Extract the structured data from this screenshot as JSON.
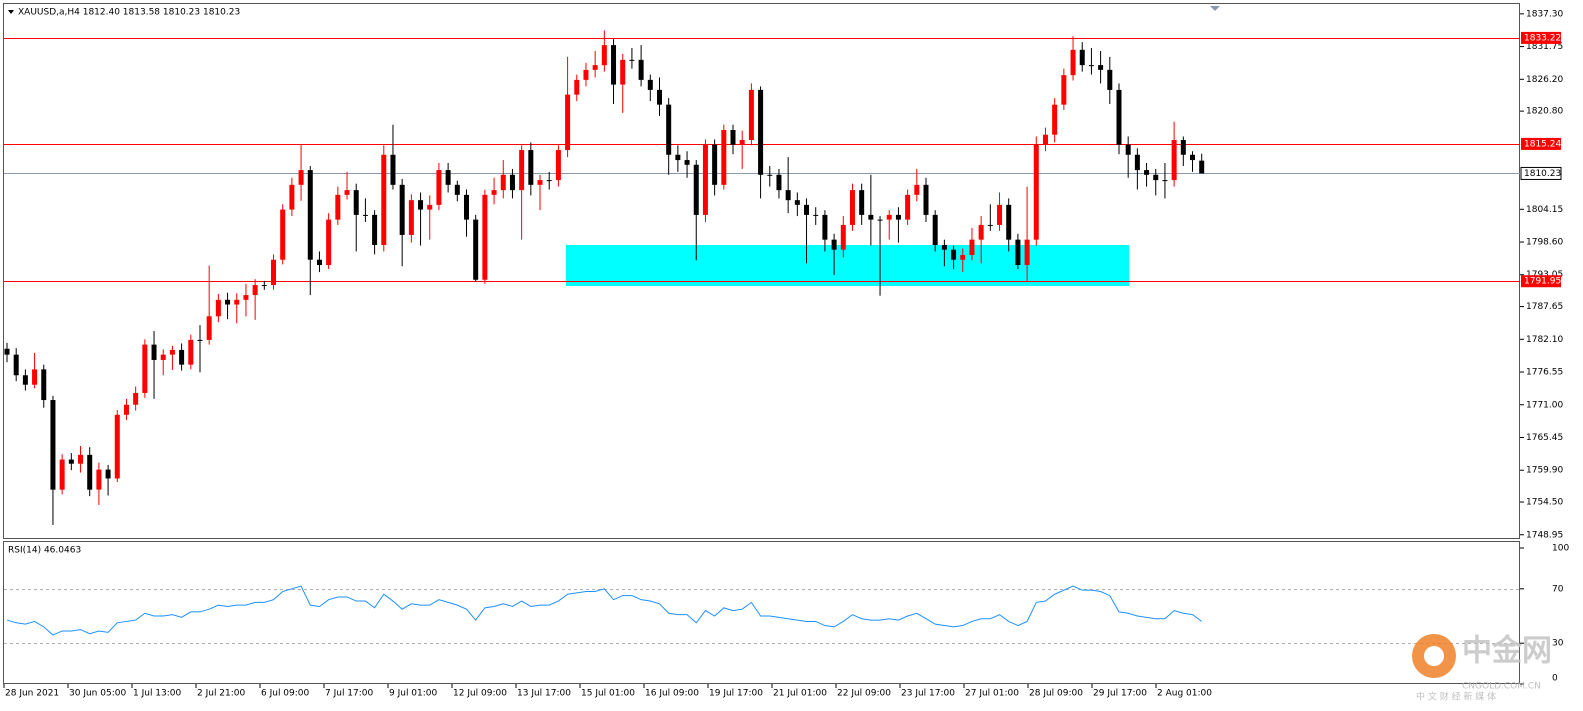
{
  "chart_data": [
    {
      "type": "candlestick",
      "title": "XAUUSD,a,H4  1812.40 1813.58 1810.23 1810.23",
      "up_color": "#ff0000",
      "down_color": "#000000",
      "level_color": "#ff0000",
      "price_line_color": "#8a98b0",
      "ylim": [
        1748.4,
        1838.8
      ],
      "yticks": [
        {
          "value": 1837.3,
          "label": "1837.30"
        },
        {
          "value": 1831.75,
          "label": "1831.75"
        },
        {
          "value": 1826.2,
          "label": "1826.20"
        },
        {
          "value": 1820.8,
          "label": "1820.80"
        },
        {
          "value": 1804.15,
          "label": "1804.15"
        },
        {
          "value": 1798.6,
          "label": "1798.60"
        },
        {
          "value": 1793.05,
          "label": "1793.05"
        },
        {
          "value": 1787.65,
          "label": "1787.65"
        },
        {
          "value": 1782.1,
          "label": "1782.10"
        },
        {
          "value": 1776.55,
          "label": "1776.55"
        },
        {
          "value": 1771,
          "label": "1771.00"
        },
        {
          "value": 1765.45,
          "label": "1765.45"
        },
        {
          "value": 1759.9,
          "label": "1759.90"
        },
        {
          "value": 1754.5,
          "label": "1754.50"
        },
        {
          "value": 1748.95,
          "label": "1748.95"
        }
      ],
      "levels": [
        1833.22,
        1815.24,
        1791.95
      ],
      "current_price": 1810.23,
      "x_labels": [
        "28 Jun 2021",
        "30 Jun 05:00",
        "1 Jul 13:00",
        "2 Jul 21:00",
        "6 Jul 09:00",
        "7 Jul 17:00",
        "9 Jul 01:00",
        "12 Jul 09:00",
        "13 Jul 17:00",
        "15 Jul 01:00",
        "16 Jul 09:00",
        "19 Jul 17:00",
        "21 Jul 01:00",
        "22 Jul 09:00",
        "23 Jul 17:00",
        "27 Jul 01:00",
        "28 Jul 09:00",
        "29 Jul 17:00",
        "2 Aug 01:00"
      ],
      "ohlc": [
        [
          1780.5,
          1781.5,
          1778.2,
          1779.5
        ],
        [
          1779.5,
          1780.6,
          1775.0,
          1776.0
        ],
        [
          1776.0,
          1777.0,
          1773.4,
          1774.4
        ],
        [
          1774.4,
          1779.8,
          1773.8,
          1777.0
        ],
        [
          1777.0,
          1777.8,
          1770.5,
          1771.8
        ],
        [
          1771.8,
          1772.5,
          1750.6,
          1756.6
        ],
        [
          1756.6,
          1762.6,
          1755.8,
          1761.7
        ],
        [
          1761.7,
          1762.8,
          1759.9,
          1761.0
        ],
        [
          1761.0,
          1764.0,
          1759.5,
          1762.5
        ],
        [
          1762.5,
          1763.8,
          1755.5,
          1756.6
        ],
        [
          1756.6,
          1761.2,
          1754.0,
          1760.0
        ],
        [
          1760.0,
          1760.8,
          1755.6,
          1758.5
        ],
        [
          1758.5,
          1770.1,
          1757.9,
          1769.3
        ],
        [
          1769.3,
          1772.0,
          1768.4,
          1771.0
        ],
        [
          1771.0,
          1774.1,
          1770.0,
          1773.0
        ],
        [
          1773.0,
          1782.1,
          1772.2,
          1781.2
        ],
        [
          1781.2,
          1783.5,
          1772.0,
          1778.6
        ],
        [
          1778.6,
          1780.4,
          1776.0,
          1779.5
        ],
        [
          1779.5,
          1781.0,
          1776.9,
          1780.3
        ],
        [
          1780.3,
          1781.4,
          1776.8,
          1777.8
        ],
        [
          1777.8,
          1782.9,
          1777.0,
          1782.0
        ],
        [
          1782.0,
          1784.5,
          1776.5,
          1782.0
        ],
        [
          1782.0,
          1794.6,
          1781.2,
          1786.0
        ],
        [
          1786.0,
          1789.8,
          1785.0,
          1788.8
        ],
        [
          1788.8,
          1790.0,
          1785.5,
          1788.0
        ],
        [
          1788.0,
          1789.9,
          1784.8,
          1788.8
        ],
        [
          1788.8,
          1791.5,
          1786.0,
          1789.6
        ],
        [
          1789.6,
          1792.3,
          1785.4,
          1791.3
        ],
        [
          1791.3,
          1792.0,
          1790.5,
          1791.3
        ],
        [
          1791.3,
          1796.5,
          1790.5,
          1795.6
        ],
        [
          1795.6,
          1805.0,
          1794.8,
          1804.1
        ],
        [
          1804.1,
          1809.5,
          1803.0,
          1808.3
        ],
        [
          1808.3,
          1815.1,
          1805.6,
          1810.8
        ],
        [
          1810.8,
          1811.5,
          1789.6,
          1795.6
        ],
        [
          1795.6,
          1797.0,
          1793.5,
          1794.7
        ],
        [
          1794.7,
          1803.5,
          1794.0,
          1802.4
        ],
        [
          1802.4,
          1808.0,
          1801.5,
          1806.6
        ],
        [
          1806.6,
          1810.5,
          1805.8,
          1807.4
        ],
        [
          1807.4,
          1808.5,
          1797.0,
          1803.2
        ],
        [
          1803.2,
          1806.0,
          1802.0,
          1803.2
        ],
        [
          1803.2,
          1804.0,
          1796.5,
          1798.1
        ],
        [
          1798.1,
          1815.0,
          1797.0,
          1813.4
        ],
        [
          1813.4,
          1818.5,
          1807.5,
          1808.3
        ],
        [
          1808.3,
          1809.3,
          1794.5,
          1799.8
        ],
        [
          1799.8,
          1806.7,
          1798.5,
          1805.7
        ],
        [
          1805.7,
          1807.0,
          1798.0,
          1804.1
        ],
        [
          1804.1,
          1806.5,
          1799.0,
          1804.9
        ],
        [
          1804.9,
          1812.0,
          1804.0,
          1810.8
        ],
        [
          1810.8,
          1812.0,
          1807.0,
          1808.3
        ],
        [
          1808.3,
          1809.0,
          1805.5,
          1806.6
        ],
        [
          1806.6,
          1807.5,
          1799.5,
          1802.4
        ],
        [
          1802.4,
          1803.2,
          1791.8,
          1792.2
        ],
        [
          1792.2,
          1807.5,
          1791.5,
          1806.6
        ],
        [
          1806.6,
          1809.5,
          1805.0,
          1807.4
        ],
        [
          1807.4,
          1812.5,
          1806.0,
          1810.0
        ],
        [
          1810.0,
          1811.0,
          1806.0,
          1807.4
        ],
        [
          1807.4,
          1815.0,
          1799.0,
          1814.2
        ],
        [
          1814.2,
          1815.5,
          1806.5,
          1808.3
        ],
        [
          1808.3,
          1810.0,
          1804.0,
          1809.1
        ],
        [
          1809.1,
          1810.5,
          1807.5,
          1809.1
        ],
        [
          1809.1,
          1815.0,
          1808.0,
          1814.2
        ],
        [
          1814.2,
          1830.0,
          1813.0,
          1823.6
        ],
        [
          1823.6,
          1827.0,
          1822.5,
          1826.1
        ],
        [
          1826.1,
          1829.0,
          1825.0,
          1827.8
        ],
        [
          1827.8,
          1831.0,
          1826.5,
          1828.6
        ],
        [
          1828.6,
          1834.5,
          1827.5,
          1832.0
        ],
        [
          1832.0,
          1833.0,
          1822.0,
          1825.3
        ],
        [
          1825.3,
          1830.5,
          1820.5,
          1829.5
        ],
        [
          1829.5,
          1831.5,
          1828.0,
          1829.5
        ],
        [
          1829.5,
          1832.0,
          1825.0,
          1826.1
        ],
        [
          1826.1,
          1827.0,
          1822.5,
          1824.4
        ],
        [
          1824.4,
          1826.5,
          1820.0,
          1821.9
        ],
        [
          1821.9,
          1823.0,
          1810.0,
          1813.4
        ],
        [
          1813.4,
          1815.0,
          1810.5,
          1812.5
        ],
        [
          1812.5,
          1814.0,
          1809.5,
          1811.7
        ],
        [
          1811.7,
          1812.5,
          1795.5,
          1803.2
        ],
        [
          1803.2,
          1816.0,
          1802.0,
          1815.1
        ],
        [
          1815.1,
          1816.0,
          1806.5,
          1808.3
        ],
        [
          1808.3,
          1818.5,
          1807.5,
          1817.6
        ],
        [
          1817.6,
          1818.5,
          1813.5,
          1815.1
        ],
        [
          1815.1,
          1817.5,
          1811.0,
          1815.9
        ],
        [
          1815.9,
          1825.5,
          1815.0,
          1824.4
        ],
        [
          1824.4,
          1825.0,
          1806.0,
          1810.0
        ],
        [
          1810.0,
          1811.5,
          1808.0,
          1810.0
        ],
        [
          1810.0,
          1811.0,
          1806.0,
          1807.4
        ],
        [
          1807.4,
          1813.0,
          1803.5,
          1805.7
        ],
        [
          1805.7,
          1807.0,
          1803.0,
          1804.9
        ],
        [
          1804.9,
          1806.0,
          1795.0,
          1803.2
        ],
        [
          1803.2,
          1804.5,
          1801.5,
          1803.2
        ],
        [
          1803.2,
          1804.0,
          1797.0,
          1799.0
        ],
        [
          1799.0,
          1800.0,
          1793.0,
          1797.3
        ],
        [
          1797.3,
          1803.0,
          1796.0,
          1801.5
        ],
        [
          1801.5,
          1808.5,
          1800.5,
          1807.4
        ],
        [
          1807.4,
          1808.5,
          1801.5,
          1803.2
        ],
        [
          1803.2,
          1810.0,
          1798.0,
          1802.4
        ],
        [
          1802.4,
          1803.0,
          1789.5,
          1802.4
        ],
        [
          1802.4,
          1804.0,
          1799.0,
          1803.2
        ],
        [
          1803.2,
          1804.5,
          1798.5,
          1802.4
        ],
        [
          1802.4,
          1807.5,
          1801.5,
          1806.6
        ],
        [
          1806.6,
          1811.0,
          1805.5,
          1808.3
        ],
        [
          1808.3,
          1809.5,
          1802.0,
          1803.2
        ],
        [
          1803.2,
          1804.0,
          1797.0,
          1798.1
        ],
        [
          1798.1,
          1799.0,
          1794.5,
          1797.3
        ],
        [
          1797.3,
          1798.0,
          1794.0,
          1795.6
        ],
        [
          1795.6,
          1797.5,
          1793.5,
          1796.4
        ],
        [
          1796.4,
          1801.0,
          1795.5,
          1799.0
        ],
        [
          1799.0,
          1803.0,
          1795.0,
          1801.5
        ],
        [
          1801.5,
          1805.0,
          1800.5,
          1801.5
        ],
        [
          1801.5,
          1807.0,
          1800.5,
          1804.9
        ],
        [
          1804.9,
          1806.0,
          1797.0,
          1799.0
        ],
        [
          1799.0,
          1800.0,
          1794.0,
          1794.7
        ],
        [
          1794.7,
          1808.0,
          1792.0,
          1799.0
        ],
        [
          1799.0,
          1816.5,
          1798.0,
          1815.1
        ],
        [
          1815.1,
          1818.0,
          1814.0,
          1816.8
        ],
        [
          1816.8,
          1823.0,
          1815.5,
          1821.9
        ],
        [
          1821.9,
          1828.0,
          1821.0,
          1826.9
        ],
        [
          1826.9,
          1833.5,
          1826.0,
          1831.2
        ],
        [
          1831.2,
          1832.5,
          1827.5,
          1828.6
        ],
        [
          1828.6,
          1831.5,
          1827.0,
          1828.6
        ],
        [
          1828.6,
          1831.0,
          1825.5,
          1827.8
        ],
        [
          1827.8,
          1830.0,
          1822.0,
          1824.4
        ],
        [
          1824.4,
          1825.5,
          1813.5,
          1815.1
        ],
        [
          1815.1,
          1816.5,
          1809.5,
          1813.4
        ],
        [
          1813.4,
          1814.5,
          1807.5,
          1810.8
        ],
        [
          1810.8,
          1812.0,
          1808.0,
          1810.0
        ],
        [
          1810.0,
          1811.0,
          1806.5,
          1809.1
        ],
        [
          1809.1,
          1812.0,
          1806.0,
          1809.1
        ],
        [
          1809.1,
          1819.0,
          1808.0,
          1815.9
        ],
        [
          1815.9,
          1816.5,
          1811.5,
          1813.4
        ],
        [
          1813.4,
          1814.0,
          1810.5,
          1812.5
        ],
        [
          1812.4,
          1813.58,
          1810.23,
          1810.23
        ]
      ]
    },
    {
      "type": "line",
      "title": "RSI(14) 46.0463",
      "color": "#1e90ff",
      "level_color": "#b0b0b0",
      "ylim": [
        0,
        100
      ],
      "yticks": [
        100,
        70,
        30,
        0
      ],
      "levels": [
        70,
        30
      ],
      "values": [
        47,
        45,
        44,
        46,
        42,
        36,
        39,
        39,
        40,
        37,
        39,
        38,
        45,
        46,
        47,
        52,
        50,
        50,
        51,
        49,
        53,
        53,
        55,
        58,
        57,
        58,
        58,
        60,
        60,
        62,
        68,
        70,
        72,
        58,
        57,
        62,
        64,
        64,
        61,
        61,
        56,
        66,
        61,
        55,
        59,
        58,
        58,
        62,
        60,
        58,
        55,
        47,
        56,
        57,
        59,
        57,
        61,
        57,
        58,
        58,
        61,
        66,
        67,
        68,
        68,
        70,
        62,
        65,
        65,
        62,
        61,
        59,
        52,
        51,
        51,
        45,
        54,
        50,
        56,
        54,
        55,
        60,
        50,
        50,
        49,
        48,
        47,
        46,
        46,
        43,
        42,
        46,
        51,
        48,
        47,
        47,
        48,
        47,
        50,
        52,
        48,
        44,
        43,
        42,
        43,
        46,
        48,
        48,
        51,
        46,
        43,
        46,
        60,
        61,
        66,
        69,
        72,
        69,
        69,
        68,
        65,
        53,
        52,
        50,
        49,
        48,
        48,
        54,
        52,
        51,
        46.0463
      ]
    }
  ],
  "watermark": {
    "brand": "中金网",
    "domain": "CNGOLD.COM.CN",
    "tagline": "中 文 财 经 新 媒 体"
  }
}
